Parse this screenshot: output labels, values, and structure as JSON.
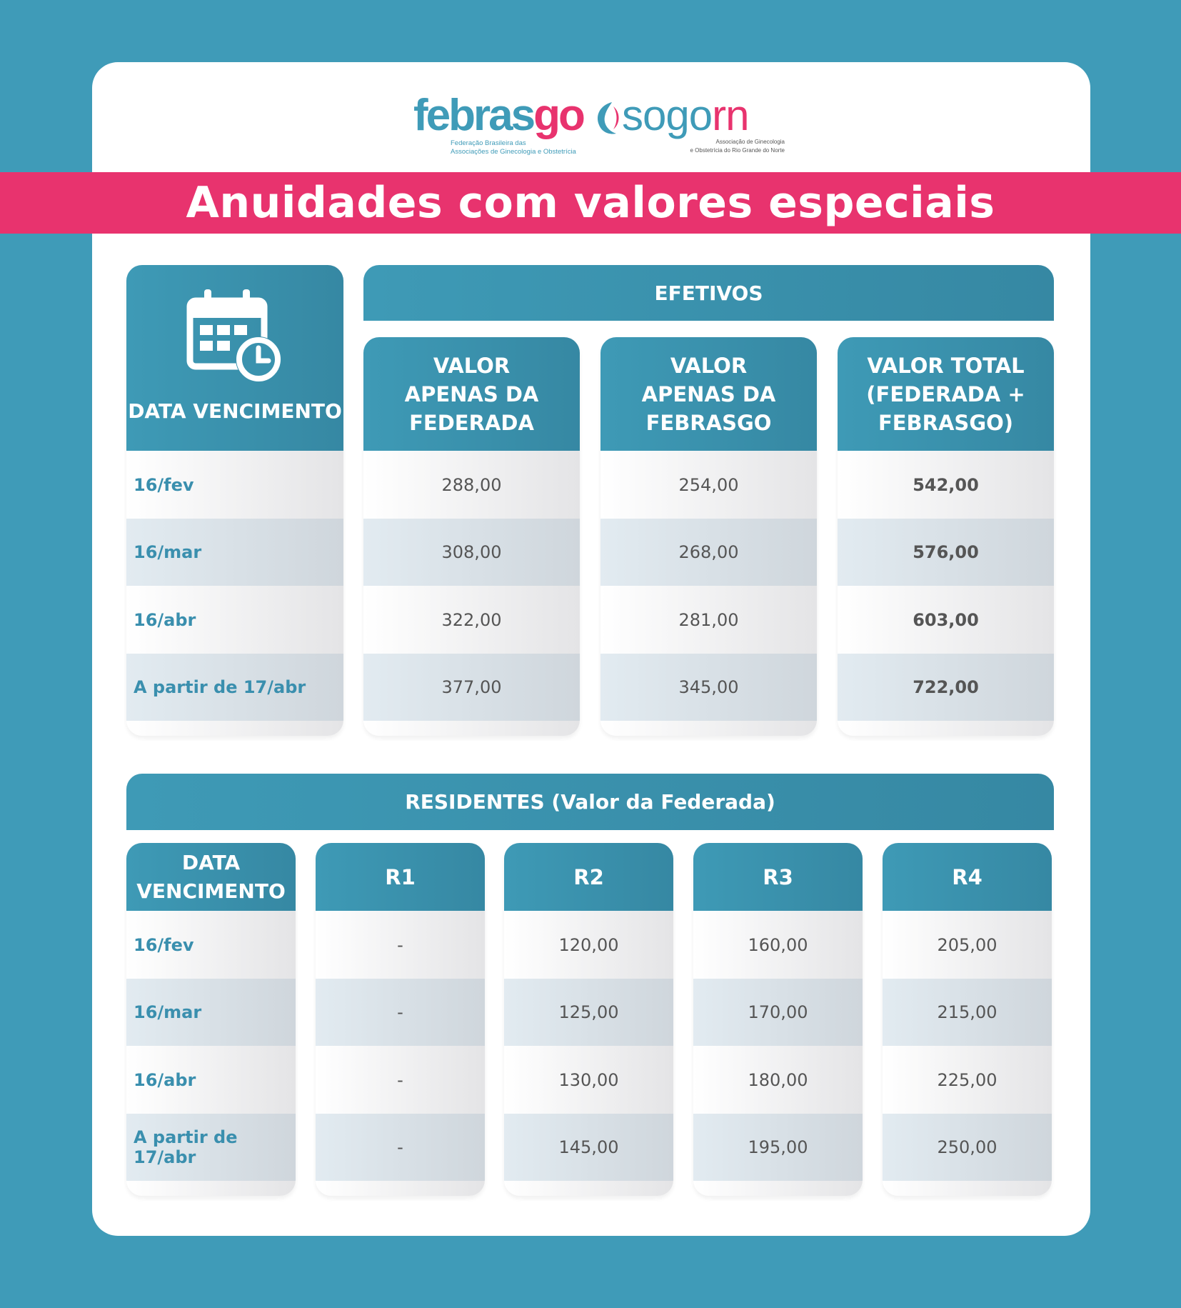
{
  "logos": {
    "febrasgo": {
      "name_main": "febras",
      "name_accent": "go",
      "subtitle_1": "Federação Brasileira das",
      "subtitle_2": "Associações de Ginecologia e Obstetrícia"
    },
    "sogorn": {
      "name_main": "sogo",
      "name_accent": "rn",
      "subtitle_1": "Associação de Ginecologia",
      "subtitle_2": "e Obstetrícia do Rio Grande do Norte"
    }
  },
  "title": "Anuidades com valores especiais",
  "colors": {
    "background": "#3f9bb8",
    "accent_pink": "#e8336e",
    "header_teal": "#3e9ab6"
  },
  "efetivos": {
    "section_label": "EFETIVOS",
    "date_header": "DATA VENCIMENTO",
    "date_icon": "calendar-clock-icon",
    "columns": [
      {
        "line1": "VALOR",
        "line2": "APENAS DA",
        "line3": "FEDERADA"
      },
      {
        "line1": "VALOR",
        "line2": "APENAS DA",
        "line3": "FEBRASGO"
      },
      {
        "line1": "VALOR TOTAL",
        "line2": "(FEDERADA +",
        "line3": "FEBRASGO)"
      }
    ],
    "rows": [
      {
        "date": "16/fev",
        "federada": "288,00",
        "febrasgo": "254,00",
        "total": "542,00"
      },
      {
        "date": "16/mar",
        "federada": "308,00",
        "febrasgo": "268,00",
        "total": "576,00"
      },
      {
        "date": "16/abr",
        "federada": "322,00",
        "febrasgo": "281,00",
        "total": "603,00"
      },
      {
        "date": "A partir de 17/abr",
        "federada": "377,00",
        "febrasgo": "345,00",
        "total": "722,00"
      }
    ]
  },
  "residentes": {
    "section_label": "RESIDENTES (Valor da Federada)",
    "date_header_line1": "DATA",
    "date_header_line2": "VENCIMENTO",
    "columns": [
      "R1",
      "R2",
      "R3",
      "R4"
    ],
    "rows": [
      {
        "date": "16/fev",
        "r1": "-",
        "r2": "120,00",
        "r3": "160,00",
        "r4": "205,00"
      },
      {
        "date": "16/mar",
        "r1": "-",
        "r2": "125,00",
        "r3": "170,00",
        "r4": "215,00"
      },
      {
        "date": "16/abr",
        "r1": "-",
        "r2": "130,00",
        "r3": "180,00",
        "r4": "225,00"
      },
      {
        "date": "A partir de 17/abr",
        "r1": "-",
        "r2": "145,00",
        "r3": "195,00",
        "r4": "250,00"
      }
    ]
  }
}
